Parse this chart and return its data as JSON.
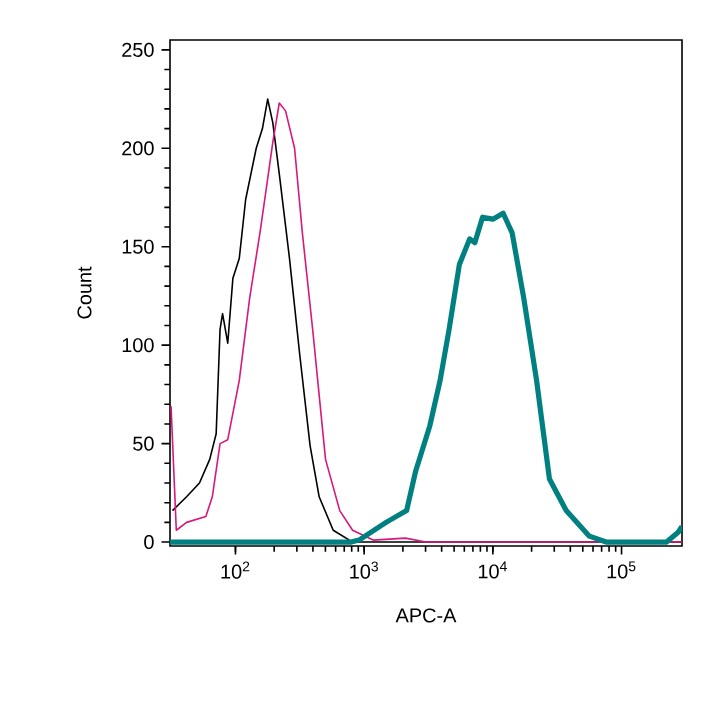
{
  "chart_data": {
    "type": "line",
    "xlabel": "APC-A",
    "ylabel": "Count",
    "log": "x",
    "xlim": [
      31,
      295000
    ],
    "ylim": [
      -2,
      255
    ],
    "xticks": [
      {
        "value": 100,
        "label": "10$^{2}$"
      },
      {
        "value": 1000,
        "label": "10$^{3}$"
      },
      {
        "value": 10000,
        "label": "10$^{4}$"
      },
      {
        "value": 100000,
        "label": "10$^{5}$"
      }
    ],
    "yticks": [
      0,
      50,
      100,
      150,
      200,
      250
    ],
    "grid": false,
    "marker": "none",
    "line_style": "solid",
    "series": [
      {
        "color": "#000000",
        "x": [
          32.4,
          41.7,
          52.5,
          63.1,
          70.8,
          75.9,
          79.4,
          87.1,
          95.5,
          107,
          120,
          145,
          162,
          178,
          195,
          219,
          263,
          316,
          380,
          447,
          575,
          813,
          933,
          2000,
          10000,
          100000,
          295000
        ],
        "values": [
          16,
          23,
          30,
          42,
          55,
          108,
          116,
          101,
          134,
          144,
          174,
          200,
          210,
          225,
          213,
          187,
          144,
          95,
          49,
          23,
          6,
          0,
          0,
          0,
          0,
          0,
          0
        ]
      },
      {
        "color": "#d6197a",
        "x": [
          31.6,
          34.7,
          41.7,
          58.9,
          66.1,
          75.9,
          87.1,
          107,
          129,
          155,
          174,
          195,
          219,
          245,
          288,
          331,
          398,
          501,
          646,
          813,
          1175,
          2089,
          3020,
          10000,
          100000,
          295000
        ],
        "values": [
          69,
          6,
          10,
          13,
          23,
          50,
          52,
          82,
          124,
          157,
          180,
          203,
          223,
          219,
          200,
          157,
          108,
          42,
          16,
          6,
          1,
          2,
          0,
          0,
          0,
          0
        ]
      },
      {
        "color": "#008080",
        "x": [
          31,
          100,
          794,
          912,
          1479,
          2138,
          2512,
          3236,
          3890,
          4571,
          5495,
          6607,
          7244,
          8318,
          10000,
          12023,
          14125,
          17378,
          21878,
          27542,
          37154,
          56234,
          75858,
          223872,
          275423,
          295000
        ],
        "values": [
          0,
          0,
          0,
          1,
          10,
          16,
          36,
          59,
          82,
          108,
          141,
          154,
          152,
          165,
          164,
          167,
          157,
          124,
          82,
          32,
          16,
          3,
          0,
          0,
          5,
          8
        ]
      }
    ]
  }
}
